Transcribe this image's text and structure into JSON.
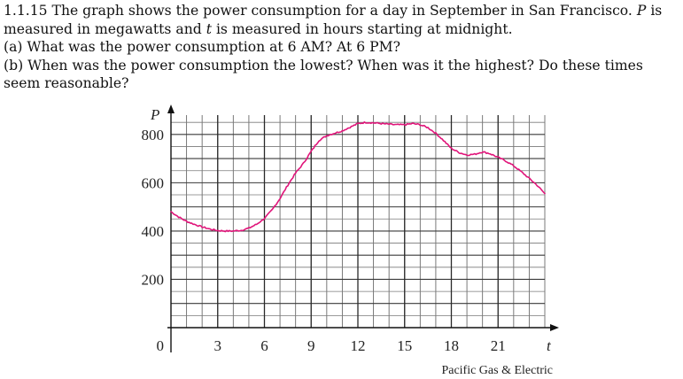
{
  "problem": {
    "line1_a": "1.1.15 The graph shows the power consumption for a day in September in San Francisco.",
    "line1_var": "P",
    "line1_b": "is",
    "line2_a": "measured in megawatts and",
    "line2_var": "t",
    "line2_b": "is measured in hours starting at midnight.",
    "part_a": "(a) What was the power consumption at 6 AM? At 6 PM?",
    "part_b_1": "(b) When was the power consumption the lowest?  When was it the highest?  Do these times",
    "part_b_2": "seem reasonable?"
  },
  "chart_data": {
    "type": "line",
    "title": "",
    "xlabel": "t",
    "ylabel": "P",
    "xlim": [
      0,
      24
    ],
    "ylim": [
      0,
      880
    ],
    "grid": true,
    "origin_label": "0",
    "x_ticks": [
      3,
      6,
      9,
      12,
      15,
      18,
      21
    ],
    "x_tick_labels": [
      "3",
      "6",
      "9",
      "12",
      "15",
      "18",
      "21"
    ],
    "y_ticks": [
      200,
      400,
      600,
      800
    ],
    "y_tick_labels": [
      "200",
      "400",
      "600",
      "800"
    ],
    "source": "Pacific Gas & Electric",
    "line_color": "#e0157a",
    "series": [
      {
        "name": "Power consumption (MW)",
        "x": [
          0,
          0.5,
          1,
          1.5,
          2,
          2.5,
          3,
          3.5,
          4,
          4.5,
          5,
          5.5,
          6,
          6.5,
          7,
          7.5,
          8,
          8.5,
          9,
          9.5,
          10,
          10.5,
          11,
          11.5,
          12,
          12.5,
          13,
          13.5,
          14,
          14.5,
          15,
          15.5,
          16,
          16.5,
          17,
          17.5,
          18,
          18.5,
          19,
          19.5,
          20,
          20.5,
          21,
          21.5,
          22,
          22.5,
          23,
          23.5,
          24
        ],
        "values": [
          480,
          458,
          440,
          428,
          417,
          408,
          402,
          400,
          400,
          403,
          412,
          428,
          452,
          488,
          535,
          590,
          640,
          680,
          730,
          775,
          795,
          805,
          815,
          830,
          845,
          850,
          848,
          845,
          842,
          840,
          840,
          845,
          840,
          828,
          805,
          775,
          742,
          725,
          715,
          718,
          728,
          720,
          705,
          690,
          670,
          645,
          618,
          590,
          555
        ]
      }
    ]
  }
}
